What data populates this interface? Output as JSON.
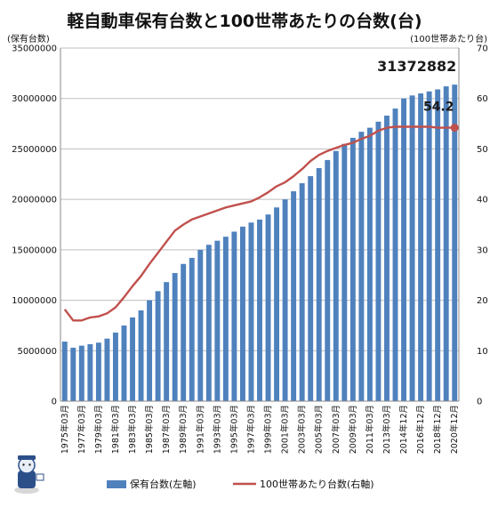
{
  "chart_data": {
    "type": "bar+line",
    "title": "軽自動車保有台数と100世帯あたりの台数(台)",
    "ylabel_left": "(保有台数)",
    "ylabel_right": "(100世帯あたり台)",
    "ylim_left": [
      0,
      35000000
    ],
    "yticks_left": [
      0,
      5000000,
      10000000,
      15000000,
      20000000,
      25000000,
      30000000,
      35000000
    ],
    "ylim_right": [
      0,
      70
    ],
    "yticks_right": [
      0,
      10,
      20,
      30,
      40,
      50,
      60,
      70
    ],
    "grid": true,
    "legend_placement": "bottom",
    "x_tick_labels": [
      "1975年03月",
      "1977年03月",
      "1979年03月",
      "1981年03月",
      "1983年03月",
      "1985年03月",
      "1987年03月",
      "1989年03月",
      "1991年03月",
      "1993年03月",
      "1995年03月",
      "1997年03月",
      "1999年03月",
      "2001年03月",
      "2003年03月",
      "2005年03月",
      "2007年03月",
      "2009年03月",
      "2011年03月",
      "2013年03月",
      "2014年12月",
      "2016年12月",
      "2018年12月",
      "2020年12月"
    ],
    "x_tick_every": 2,
    "series": [
      {
        "name": "保有台数(左軸)",
        "type": "bar",
        "color": "#4f81bd",
        "values": [
          5900000,
          5300000,
          5500000,
          5650000,
          5800000,
          6200000,
          6800000,
          7500000,
          8300000,
          9000000,
          10000000,
          10900000,
          11800000,
          12700000,
          13600000,
          14200000,
          15000000,
          15500000,
          15900000,
          16300000,
          16800000,
          17300000,
          17700000,
          18000000,
          18500000,
          19200000,
          20000000,
          20800000,
          21600000,
          22300000,
          23100000,
          23900000,
          24800000,
          25500000,
          26100000,
          26700000,
          27100000,
          27700000,
          28300000,
          29000000,
          30000000,
          30300000,
          30500000,
          30700000,
          30900000,
          31200000,
          31372882
        ]
      },
      {
        "name": "100世帯あたり台数(右軸)",
        "type": "line",
        "color": "#c0504d",
        "values": [
          18.2,
          16.0,
          16.0,
          16.6,
          16.8,
          17.4,
          18.6,
          20.6,
          22.8,
          24.8,
          27.2,
          29.4,
          31.6,
          33.8,
          35.0,
          36.0,
          36.6,
          37.2,
          37.8,
          38.4,
          38.8,
          39.2,
          39.6,
          40.4,
          41.4,
          42.6,
          43.4,
          44.6,
          46.0,
          47.6,
          48.8,
          49.6,
          50.2,
          50.8,
          51.2,
          52.0,
          52.6,
          53.6,
          54.2,
          54.4,
          54.4,
          54.4,
          54.4,
          54.4,
          54.2,
          54.2,
          54.2
        ]
      }
    ],
    "annotations": [
      {
        "text": "31372882",
        "series": 0,
        "index": 46
      },
      {
        "text": "54.2",
        "series": 1,
        "index": 46
      }
    ]
  }
}
